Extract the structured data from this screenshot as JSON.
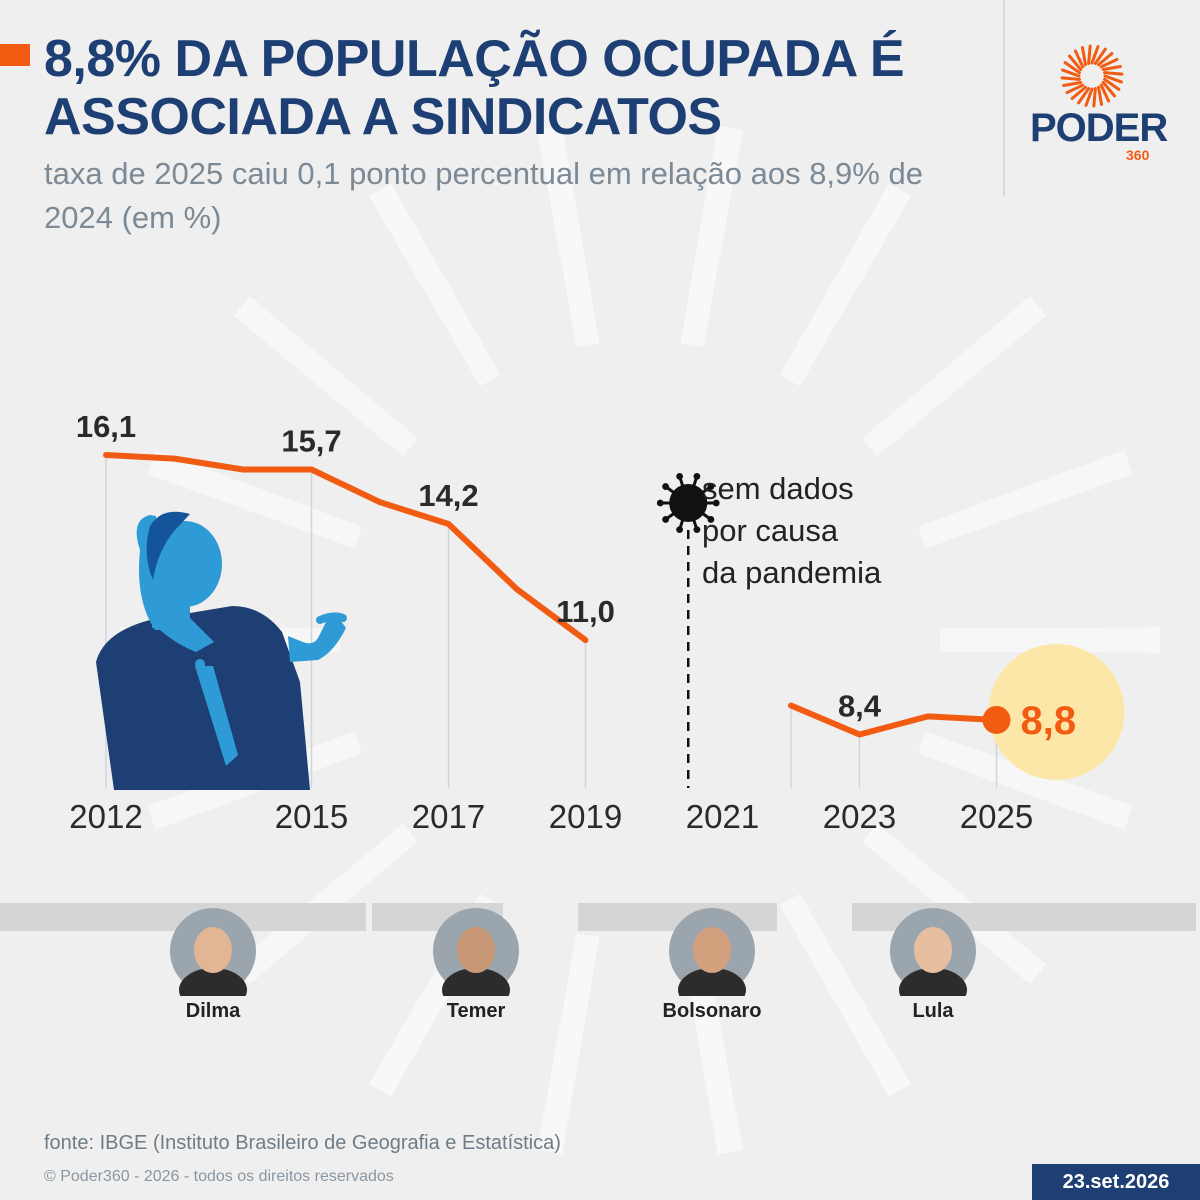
{
  "header": {
    "title": "8,8% DA POPULAÇÃO OCUPADA É ASSOCIADA A SINDICATOS",
    "subtitle": "taxa de 2025 caiu 0,1 ponto percentual em relação aos 8,9% de 2024 (em %)"
  },
  "brand": {
    "word": "PODER",
    "number": "360",
    "navy": "#1d3f74",
    "accent": "#f25c12"
  },
  "chart_data": {
    "type": "line",
    "x_ticks": [
      "2012",
      "2015",
      "2017",
      "2019",
      "2021",
      "2023",
      "2025"
    ],
    "segments": [
      {
        "points": [
          {
            "x": 2012,
            "y": 16.1
          },
          {
            "x": 2013,
            "y": 16.0
          },
          {
            "x": 2014,
            "y": 15.7
          },
          {
            "x": 2015,
            "y": 15.7
          },
          {
            "x": 2016,
            "y": 14.8
          },
          {
            "x": 2017,
            "y": 14.2
          },
          {
            "x": 2018,
            "y": 12.4
          },
          {
            "x": 2019,
            "y": 11.0
          }
        ]
      },
      {
        "points": [
          {
            "x": 2022,
            "y": 9.2
          },
          {
            "x": 2023,
            "y": 8.4
          },
          {
            "x": 2024,
            "y": 8.9
          },
          {
            "x": 2025,
            "y": 8.8
          }
        ]
      }
    ],
    "labels": [
      {
        "x": 2012,
        "y": 16.1,
        "text": "16,1"
      },
      {
        "x": 2015,
        "y": 15.7,
        "text": "15,7"
      },
      {
        "x": 2017,
        "y": 14.2,
        "text": "14,2"
      },
      {
        "x": 2019,
        "y": 11.0,
        "text": "11,0"
      },
      {
        "x": 2023,
        "y": 8.4,
        "text": "8,4"
      },
      {
        "x": 2025,
        "y": 8.8,
        "text": "8,8",
        "highlight": true
      }
    ],
    "gridline_years": [
      2012,
      2015,
      2017,
      2019,
      2022,
      2023,
      2025
    ],
    "gap_marker": {
      "x": 2020.5
    },
    "annotation": [
      "sem dados",
      "por causa",
      "da pandemia"
    ],
    "line_color": "#f25c12",
    "highlight_color": "#fde7a8"
  },
  "presidents": [
    {
      "name": "Dilma",
      "start": 2012,
      "end": 2016
    },
    {
      "name": "Temer",
      "start": 2016,
      "end": 2018
    },
    {
      "name": "Bolsonaro",
      "start": 2019,
      "end": 2022
    },
    {
      "name": "Lula",
      "start": 2023,
      "end": 2026
    }
  ],
  "footer": {
    "source": "fonte: IBGE (Instituto Brasileiro de Geografia e Estatística)",
    "copyright": "© Poder360 - 2026 - todos os direitos reservados",
    "date": "23.set.2026"
  }
}
